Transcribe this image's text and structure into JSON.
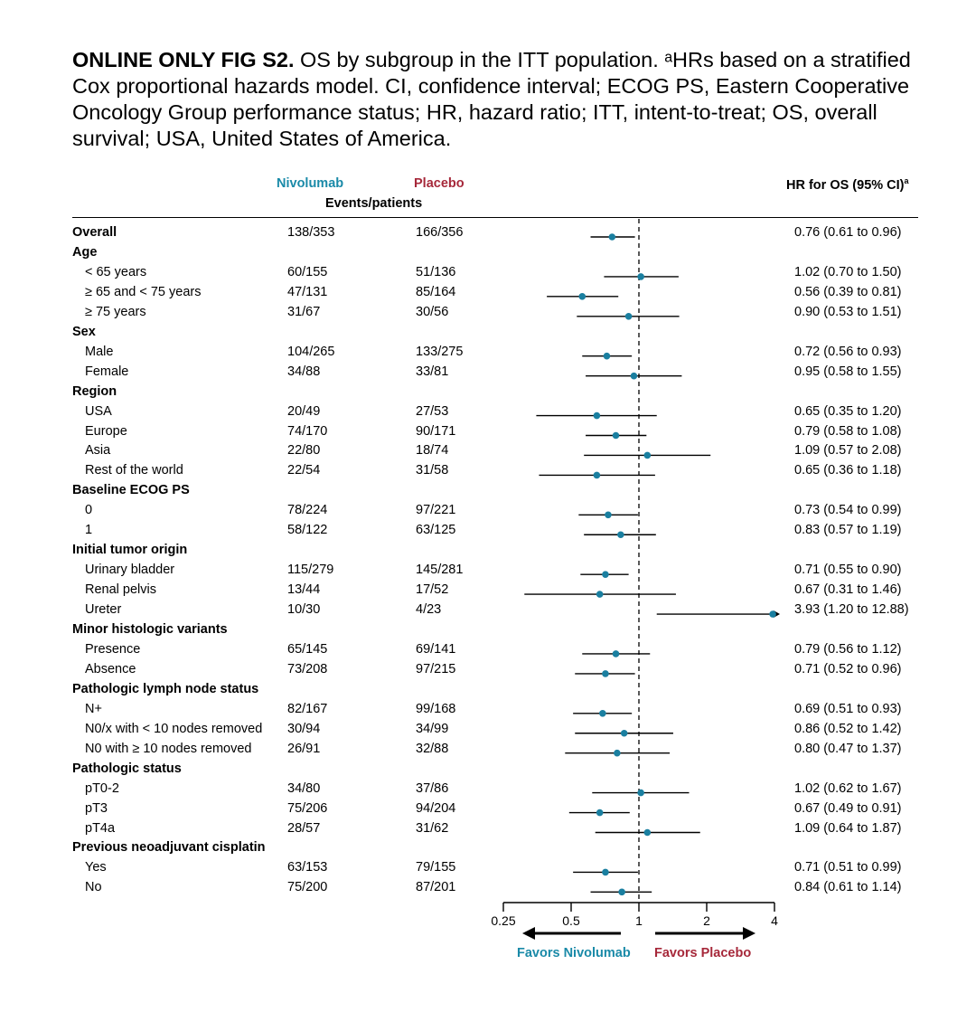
{
  "caption": {
    "bold": "ONLINE ONLY FIG S2.",
    "text": " OS by subgroup in the ITT population. ᵃHRs based on a stratified Cox proportional hazards model. CI, confidence interval; ECOG PS, Eastern Cooperative Oncology Group performance status; HR, hazard ratio; ITT, intent-to-treat; OS, overall survival; USA, United States of America."
  },
  "headers": {
    "nivolumab": "Nivolumab",
    "placebo": "Placebo",
    "events": "Events/patients",
    "hr": "HR for OS (95% CI)",
    "hr_sup": "a"
  },
  "colors": {
    "nivolumab": "#1a8aa8",
    "placebo": "#a6283a",
    "point": "#1a7fa0"
  },
  "chart_data": {
    "type": "forest",
    "x_scale": "log",
    "xlim": [
      0.25,
      4
    ],
    "reference_line": 1,
    "ticks": [
      "0.25",
      "0.5",
      "1",
      "2",
      "4"
    ],
    "favors_left": "Favors Nivolumab",
    "favors_right": "Favors Placebo",
    "rows": [
      {
        "label": "Overall",
        "kind": "bold",
        "nivo": "138/353",
        "plac": "166/356",
        "hr_text": "0.76 (0.61 to 0.96)",
        "hr": 0.76,
        "lo": 0.61,
        "hi": 0.96
      },
      {
        "label": "Age",
        "kind": "bold"
      },
      {
        "label": "< 65 years",
        "kind": "sub",
        "nivo": "60/155",
        "plac": "51/136",
        "hr_text": "1.02 (0.70 to 1.50)",
        "hr": 1.02,
        "lo": 0.7,
        "hi": 1.5
      },
      {
        "label": "≥ 65 and < 75 years",
        "kind": "sub",
        "nivo": "47/131",
        "plac": "85/164",
        "hr_text": "0.56 (0.39 to 0.81)",
        "hr": 0.56,
        "lo": 0.39,
        "hi": 0.81
      },
      {
        "label": "≥ 75 years",
        "kind": "sub",
        "nivo": "31/67",
        "plac": "30/56",
        "hr_text": "0.90 (0.53 to 1.51)",
        "hr": 0.9,
        "lo": 0.53,
        "hi": 1.51
      },
      {
        "label": "Sex",
        "kind": "bold"
      },
      {
        "label": "Male",
        "kind": "sub",
        "nivo": "104/265",
        "plac": "133/275",
        "hr_text": "0.72 (0.56 to 0.93)",
        "hr": 0.72,
        "lo": 0.56,
        "hi": 0.93
      },
      {
        "label": "Female",
        "kind": "sub",
        "nivo": "34/88",
        "plac": "33/81",
        "hr_text": "0.95 (0.58 to 1.55)",
        "hr": 0.95,
        "lo": 0.58,
        "hi": 1.55
      },
      {
        "label": "Region",
        "kind": "bold"
      },
      {
        "label": "USA",
        "kind": "sub",
        "nivo": "20/49",
        "plac": "27/53",
        "hr_text": "0.65 (0.35 to 1.20)",
        "hr": 0.65,
        "lo": 0.35,
        "hi": 1.2
      },
      {
        "label": "Europe",
        "kind": "sub",
        "nivo": "74/170",
        "plac": "90/171",
        "hr_text": "0.79 (0.58 to 1.08)",
        "hr": 0.79,
        "lo": 0.58,
        "hi": 1.08
      },
      {
        "label": "Asia",
        "kind": "sub",
        "nivo": "22/80",
        "plac": "18/74",
        "hr_text": "1.09 (0.57 to 2.08)",
        "hr": 1.09,
        "lo": 0.57,
        "hi": 2.08
      },
      {
        "label": "Rest of the world",
        "kind": "sub",
        "nivo": "22/54",
        "plac": "31/58",
        "hr_text": "0.65 (0.36 to 1.18)",
        "hr": 0.65,
        "lo": 0.36,
        "hi": 1.18
      },
      {
        "label": "Baseline ECOG PS",
        "kind": "bold"
      },
      {
        "label": "0",
        "kind": "sub",
        "nivo": "78/224",
        "plac": "97/221",
        "hr_text": "0.73 (0.54 to 0.99)",
        "hr": 0.73,
        "lo": 0.54,
        "hi": 0.99
      },
      {
        "label": "1",
        "kind": "sub",
        "nivo": "58/122",
        "plac": "63/125",
        "hr_text": "0.83 (0.57 to 1.19)",
        "hr": 0.83,
        "lo": 0.57,
        "hi": 1.19
      },
      {
        "label": "Initial tumor origin",
        "kind": "bold"
      },
      {
        "label": "Urinary bladder",
        "kind": "sub",
        "nivo": "115/279",
        "plac": "145/281",
        "hr_text": "0.71 (0.55 to 0.90)",
        "hr": 0.71,
        "lo": 0.55,
        "hi": 0.9
      },
      {
        "label": "Renal pelvis",
        "kind": "sub",
        "nivo": "13/44",
        "plac": "17/52",
        "hr_text": "0.67 (0.31 to 1.46)",
        "hr": 0.67,
        "lo": 0.31,
        "hi": 1.46
      },
      {
        "label": "Ureter",
        "kind": "sub",
        "nivo": "10/30",
        "plac": "4/23",
        "hr_text": "3.93 (1.20 to 12.88)",
        "hr": 3.93,
        "lo": 1.2,
        "hi": 12.88
      },
      {
        "label": "Minor histologic variants",
        "kind": "bold"
      },
      {
        "label": "Presence",
        "kind": "sub",
        "nivo": "65/145",
        "plac": "69/141",
        "hr_text": "0.79 (0.56 to 1.12)",
        "hr": 0.79,
        "lo": 0.56,
        "hi": 1.12
      },
      {
        "label": "Absence",
        "kind": "sub",
        "nivo": "73/208",
        "plac": "97/215",
        "hr_text": "0.71 (0.52 to 0.96)",
        "hr": 0.71,
        "lo": 0.52,
        "hi": 0.96
      },
      {
        "label": "Pathologic lymph node status",
        "kind": "bold"
      },
      {
        "label": "N+",
        "kind": "sub",
        "nivo": "82/167",
        "plac": "99/168",
        "hr_text": "0.69 (0.51 to 0.93)",
        "hr": 0.69,
        "lo": 0.51,
        "hi": 0.93
      },
      {
        "label": "N0/x with < 10 nodes removed",
        "kind": "sub",
        "nivo": "30/94",
        "plac": "34/99",
        "hr_text": "0.86 (0.52 to 1.42)",
        "hr": 0.86,
        "lo": 0.52,
        "hi": 1.42
      },
      {
        "label": "N0 with ≥ 10 nodes removed",
        "kind": "sub",
        "nivo": "26/91",
        "plac": "32/88",
        "hr_text": "0.80 (0.47 to 1.37)",
        "hr": 0.8,
        "lo": 0.47,
        "hi": 1.37
      },
      {
        "label": "Pathologic status",
        "kind": "bold"
      },
      {
        "label": "pT0-2",
        "kind": "sub",
        "nivo": "34/80",
        "plac": "37/86",
        "hr_text": "1.02 (0.62 to 1.67)",
        "hr": 1.02,
        "lo": 0.62,
        "hi": 1.67
      },
      {
        "label": "pT3",
        "kind": "sub",
        "nivo": "75/206",
        "plac": "94/204",
        "hr_text": "0.67 (0.49 to 0.91)",
        "hr": 0.67,
        "lo": 0.49,
        "hi": 0.91
      },
      {
        "label": "pT4a",
        "kind": "sub",
        "nivo": "28/57",
        "plac": "31/62",
        "hr_text": "1.09 (0.64 to 1.87)",
        "hr": 1.09,
        "lo": 0.64,
        "hi": 1.87
      },
      {
        "label": "Previous neoadjuvant cisplatin",
        "kind": "bold"
      },
      {
        "label": "Yes",
        "kind": "sub",
        "nivo": "63/153",
        "plac": "79/155",
        "hr_text": "0.71 (0.51 to 0.99)",
        "hr": 0.71,
        "lo": 0.51,
        "hi": 0.99
      },
      {
        "label": "No",
        "kind": "sub",
        "nivo": "75/200",
        "plac": "87/201",
        "hr_text": "0.84 (0.61 to 1.14)",
        "hr": 0.84,
        "lo": 0.61,
        "hi": 1.14
      }
    ]
  }
}
